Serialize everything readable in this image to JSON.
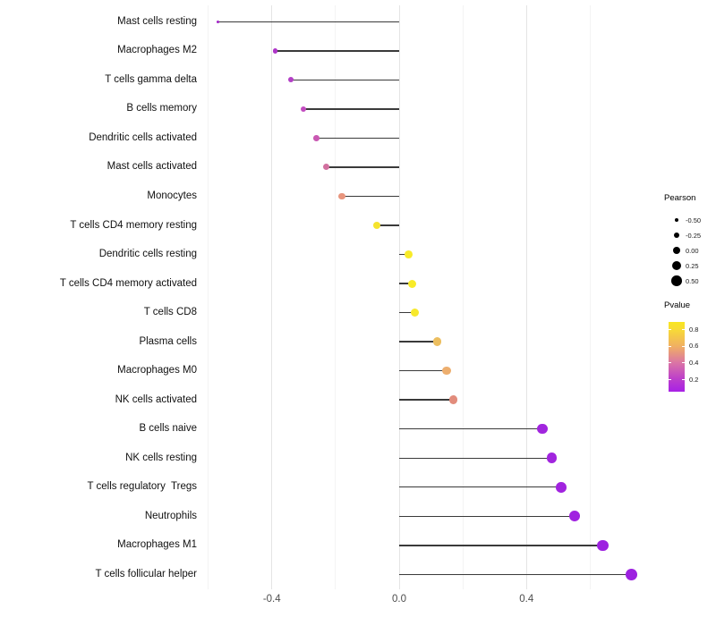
{
  "chart_data": {
    "type": "lollipop",
    "orientation": "horizontal",
    "title": "",
    "xlabel": "",
    "ylabel": "",
    "xlim": [
      -0.63,
      0.79
    ],
    "x_ticks": [
      {
        "value": -0.4,
        "label": "-0.4"
      },
      {
        "value": 0.0,
        "label": "0.0"
      },
      {
        "value": 0.4,
        "label": "0.4"
      }
    ],
    "x_minor_gridlines": [
      -0.6,
      -0.2,
      0.2,
      0.6
    ],
    "grid": "vertical-only",
    "rows": [
      {
        "label": "Mast cells resting",
        "pearson": -0.57,
        "color": "#a428c8"
      },
      {
        "label": "Macrophages M2",
        "pearson": -0.39,
        "color": "#ae35c8"
      },
      {
        "label": "T cells gamma delta",
        "pearson": -0.34,
        "color": "#b33fc6"
      },
      {
        "label": "B cells memory",
        "pearson": -0.3,
        "color": "#c24cc0"
      },
      {
        "label": "Dendritic cells activated",
        "pearson": -0.26,
        "color": "#c958b2"
      },
      {
        "label": "Mast cells activated",
        "pearson": -0.23,
        "color": "#d2709f"
      },
      {
        "label": "Monocytes",
        "pearson": -0.18,
        "color": "#e8957d"
      },
      {
        "label": "T cells CD4 memory resting",
        "pearson": -0.07,
        "color": "#f5e32e"
      },
      {
        "label": "Dendritic cells resting",
        "pearson": 0.03,
        "color": "#f8eb28"
      },
      {
        "label": "T cells CD4 memory activated",
        "pearson": 0.04,
        "color": "#f8eb28"
      },
      {
        "label": "T cells CD8",
        "pearson": 0.05,
        "color": "#f7e92c"
      },
      {
        "label": "Plasma cells",
        "pearson": 0.12,
        "color": "#ecbe5f"
      },
      {
        "label": "Macrophages M0",
        "pearson": 0.15,
        "color": "#edae6e"
      },
      {
        "label": "NK cells activated",
        "pearson": 0.17,
        "color": "#e28c7c"
      },
      {
        "label": "B cells naive",
        "pearson": 0.45,
        "color": "#a125de"
      },
      {
        "label": "NK cells resting",
        "pearson": 0.48,
        "color": "#a125de"
      },
      {
        "label": "T cells regulatory  Tregs",
        "pearson": 0.51,
        "color": "#a123df"
      },
      {
        "label": "Neutrophils",
        "pearson": 0.55,
        "color": "#a023e0"
      },
      {
        "label": "Macrophages M1",
        "pearson": 0.64,
        "color": "#9d21e0"
      },
      {
        "label": "T cells follicular helper",
        "pearson": 0.73,
        "color": "#9d21e0"
      }
    ],
    "legend_size": {
      "title": "Pearson",
      "entries": [
        {
          "label": "-0.50",
          "value": -0.5
        },
        {
          "label": "-0.25",
          "value": -0.25
        },
        {
          "label": "0.00",
          "value": 0.0
        },
        {
          "label": "0.25",
          "value": 0.25
        },
        {
          "label": "0.50",
          "value": 0.5
        }
      ]
    },
    "legend_color": {
      "title": "Pvalue",
      "labels": [
        "0.8",
        "0.6",
        "0.4",
        "0.2"
      ],
      "gradient_stops": [
        {
          "pos": 0,
          "color": "#f8e621"
        },
        {
          "pos": 10,
          "color": "#f8dc34"
        },
        {
          "pos": 35,
          "color": "#f0af63"
        },
        {
          "pos": 58,
          "color": "#db76a4"
        },
        {
          "pos": 82,
          "color": "#bc3ecb"
        },
        {
          "pos": 100,
          "color": "#a821e6"
        }
      ]
    },
    "stem_color": "#3a3a3a",
    "major_grid_color": "#e4e4e4",
    "minor_grid_color": "#f3f3f3"
  }
}
